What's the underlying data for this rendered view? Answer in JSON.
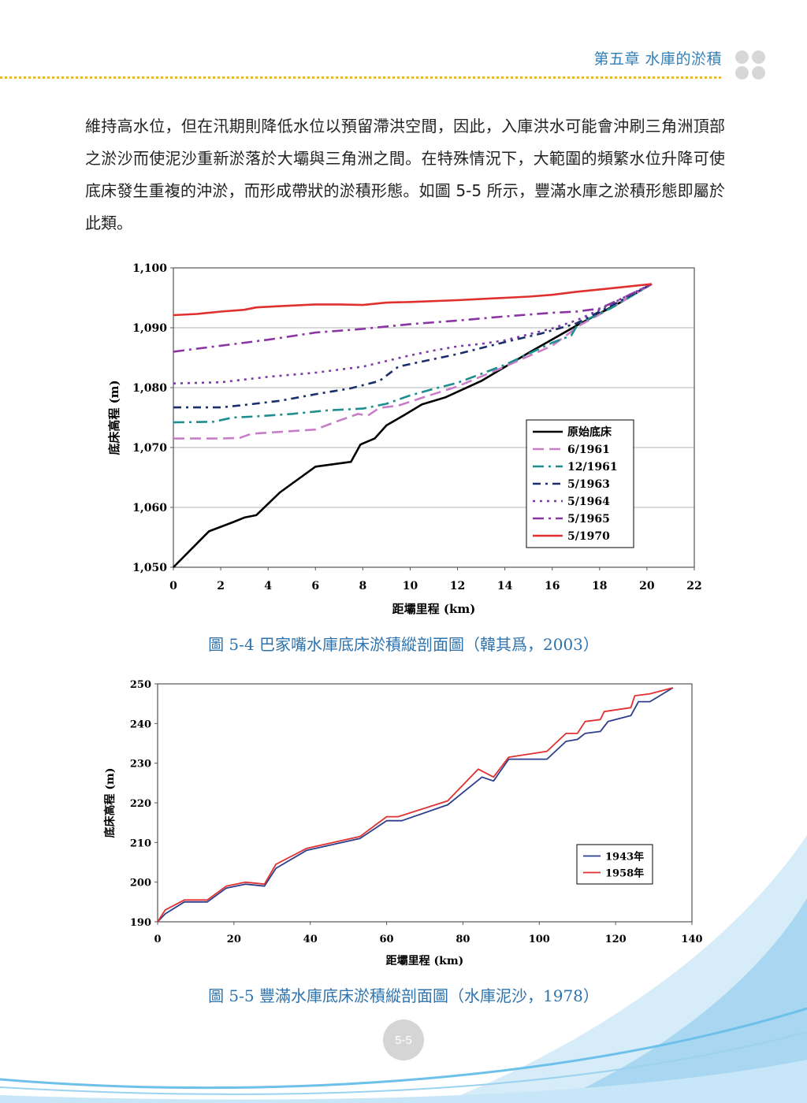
{
  "header": {
    "title": "第五章  水庫的淤積",
    "colors": {
      "title": "#2f7fb8",
      "rule": "#e8b930",
      "dots": "#d7d7d7"
    }
  },
  "body": {
    "paragraph": "維持高水位，但在汛期則降低水位以預留滯洪空間，因此，入庫洪水可能會沖刷三角洲頂部之淤沙而使泥沙重新淤落於大壩與三角洲之間。在特殊情況下，大範圍的頻繁水位升降可使底床發生重複的沖淤，而形成帶狀的淤積形態。如圖 5-5 所示，豐滿水庫之淤積形態即屬於此類。"
  },
  "figures": [
    {
      "caption": "圖 5-4  巴家嘴水庫底床淤積縱剖面圖（韓其爲，2003）"
    },
    {
      "caption": "圖 5-5  豐滿水庫底床淤積縱剖面圖（水庫泥沙，1978）"
    }
  ],
  "page_number": "5-5",
  "chart_data": [
    {
      "type": "line",
      "xlabel": "距壩里程 (km)",
      "ylabel": "底床高程 (m)",
      "xlim": [
        0,
        22
      ],
      "ylim": [
        1050,
        1100
      ],
      "xticks": [
        0,
        2,
        4,
        6,
        8,
        10,
        12,
        14,
        16,
        18,
        20,
        22
      ],
      "yticks": [
        1050,
        1060,
        1070,
        1080,
        1090,
        1100
      ],
      "ytick_labels": [
        "1,050",
        "1,060",
        "1,070",
        "1,080",
        "1,090",
        "1,100"
      ],
      "grid": "horizontal",
      "legend_position": "lower-right",
      "series": [
        {
          "name": "原始底床",
          "color": "#000000",
          "dash": "solid",
          "x": [
            0,
            1.5,
            2.5,
            3,
            3.5,
            4.5,
            6,
            7.5,
            7.9,
            8.5,
            9,
            9.7,
            10.5,
            11.5,
            13,
            15,
            17,
            19,
            20.2
          ],
          "y": [
            1050,
            1056,
            1057.5,
            1058.3,
            1058.7,
            1062.5,
            1066.8,
            1067.6,
            1070.5,
            1071.5,
            1073.7,
            1075.3,
            1077.2,
            1078.4,
            1081.1,
            1085.8,
            1090.3,
            1094.5,
            1097.3
          ]
        },
        {
          "name": "6/1961",
          "color": "#c77ec7",
          "dash": "dashed",
          "x": [
            0,
            1,
            2,
            2.8,
            3.3,
            4.5,
            6,
            7,
            7.8,
            8.2,
            8.7,
            9.5,
            10.5,
            12,
            14,
            16,
            17.2,
            18.5,
            20.2
          ],
          "y": [
            1071.5,
            1071.5,
            1071.5,
            1071.6,
            1072.3,
            1072.6,
            1073,
            1074.5,
            1075.6,
            1075.3,
            1076.6,
            1077,
            1078.3,
            1080.2,
            1083.5,
            1087,
            1090.5,
            1093.3,
            1097.3
          ]
        },
        {
          "name": "12/1961",
          "color": "#1e8e8e",
          "dash": "dashdot",
          "x": [
            0,
            1.7,
            2.5,
            3.5,
            5,
            6.5,
            8,
            9,
            10,
            11,
            12,
            14,
            16,
            16.8,
            17.1,
            18.5,
            20.2
          ],
          "y": [
            1074.2,
            1074.3,
            1075,
            1075.2,
            1075.6,
            1076.2,
            1076.5,
            1077.3,
            1078.7,
            1079.8,
            1080.8,
            1083.8,
            1087.5,
            1088.7,
            1090.7,
            1093.3,
            1097.3
          ]
        },
        {
          "name": "5/1963",
          "color": "#1a2f6a",
          "dash": "dashdotshort",
          "x": [
            0,
            2,
            3,
            4.5,
            6,
            7.5,
            8.7,
            9.5,
            10.2,
            12,
            14,
            15.5,
            17,
            18.5,
            20.2
          ],
          "y": [
            1076.7,
            1076.7,
            1077.1,
            1077.8,
            1078.9,
            1079.9,
            1081.1,
            1083.5,
            1084.1,
            1085.6,
            1087.6,
            1089,
            1090.7,
            1093.7,
            1097.3
          ]
        },
        {
          "name": "5/1964",
          "color": "#7a3aa8",
          "dash": "dotted",
          "x": [
            0,
            2,
            4,
            6,
            8,
            10,
            11,
            12,
            13,
            14,
            15,
            16,
            17,
            18,
            19,
            20.2
          ],
          "y": [
            1080.7,
            1080.9,
            1081.8,
            1082.5,
            1083.5,
            1085.4,
            1086.2,
            1086.9,
            1087.3,
            1087.9,
            1088.9,
            1089.9,
            1091.2,
            1093,
            1095,
            1097.3
          ]
        },
        {
          "name": "5/1965",
          "color": "#8a35a3",
          "dash": "dashdot",
          "x": [
            0,
            2,
            4,
            6,
            8,
            10,
            12,
            14,
            16,
            17,
            18,
            19,
            20.2
          ],
          "y": [
            1086,
            1087,
            1088,
            1089.2,
            1089.8,
            1090.6,
            1091.2,
            1091.9,
            1092.5,
            1092.7,
            1093.2,
            1095,
            1097.3
          ]
        },
        {
          "name": "5/1970",
          "color": "#e0302e",
          "dash": "solid",
          "x": [
            0,
            1,
            2,
            3,
            3.5,
            4.5,
            6,
            7,
            8,
            9,
            10,
            12,
            14,
            15,
            16,
            17,
            18,
            19,
            20.2
          ],
          "y": [
            1092.1,
            1092.3,
            1092.7,
            1093,
            1093.4,
            1093.6,
            1093.9,
            1093.9,
            1093.8,
            1094.2,
            1094.3,
            1094.6,
            1095,
            1095.2,
            1095.5,
            1096,
            1096.4,
            1096.8,
            1097.3
          ]
        }
      ]
    },
    {
      "type": "line",
      "xlabel": "距壩里程 (km)",
      "ylabel": "底床高程 (m)",
      "xlim": [
        0,
        140
      ],
      "ylim": [
        190,
        250
      ],
      "xticks": [
        0,
        20,
        40,
        60,
        80,
        100,
        120,
        140
      ],
      "yticks": [
        190,
        200,
        210,
        220,
        230,
        240,
        250
      ],
      "ytick_labels": [
        "190",
        "200",
        "210",
        "220",
        "230",
        "240",
        "250"
      ],
      "grid": "none",
      "legend_position": "right",
      "series": [
        {
          "name": "1943年",
          "color": "#2d3f8c",
          "dash": "solid",
          "x": [
            0,
            2,
            7,
            13,
            18,
            23,
            28,
            31,
            39,
            53,
            60,
            64,
            76,
            85,
            88,
            92,
            102,
            107,
            110,
            112,
            116,
            118,
            124,
            126,
            129,
            135
          ],
          "y": [
            190,
            192,
            195,
            195,
            198.5,
            199.5,
            199,
            203.5,
            208,
            211,
            215.5,
            215.5,
            219.5,
            226.5,
            225.5,
            231,
            231,
            235.5,
            236,
            237.5,
            238,
            240.5,
            242,
            245.5,
            245.5,
            249
          ]
        },
        {
          "name": "1958年",
          "color": "#e03030",
          "dash": "solid",
          "x": [
            0,
            2,
            7,
            13,
            18,
            23,
            28,
            31,
            39,
            53,
            60,
            63,
            76,
            84,
            88,
            92,
            102,
            107,
            110,
            112,
            116,
            117,
            124,
            125,
            129,
            135
          ],
          "y": [
            190,
            193,
            195.5,
            195.5,
            199,
            200,
            199.5,
            204.5,
            208.5,
            211.5,
            216.5,
            216.5,
            220.5,
            228.5,
            226.5,
            231.5,
            233,
            237.5,
            237.5,
            240.5,
            241,
            243,
            244,
            247,
            247.5,
            249
          ]
        }
      ]
    }
  ]
}
